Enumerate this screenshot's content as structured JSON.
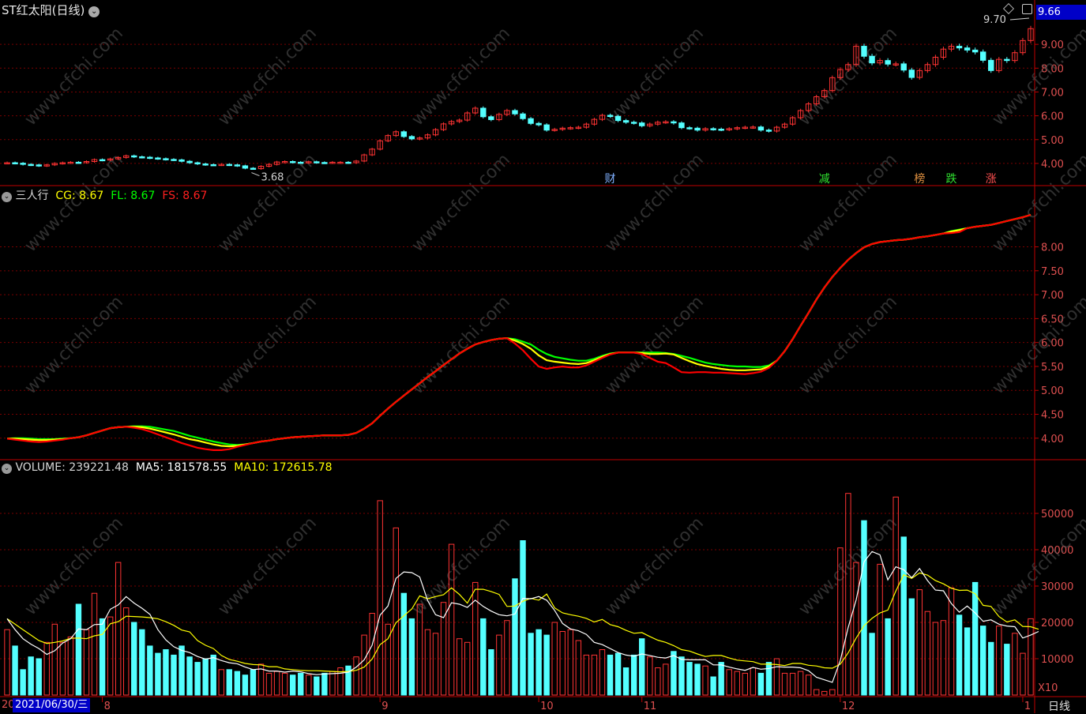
{
  "header": {
    "stock_name": "ST红太阳(日线)",
    "last_price_badge": "9.66",
    "price_annotation_high": "9.70",
    "price_annotation_low": "3.68"
  },
  "indicator_header": {
    "name": "三人行",
    "cg_label": "CG: ",
    "cg_value": "8.67",
    "fl_label": "FL: ",
    "fl_value": "8.67",
    "fs_label": "FS: ",
    "fs_value": "8.67"
  },
  "volume_header": {
    "volume_label": "VOLUME: ",
    "volume_value": "239221.48",
    "ma5_label": "MA5: ",
    "ma5_value": "181578.55",
    "ma10_label": "MA10: ",
    "ma10_value": "172615.78"
  },
  "volume_unit": "X10",
  "period_label": "日线",
  "selected_date": "2021/06/30/三",
  "x_axis_cut": "20",
  "month_labels": [
    "8",
    "9",
    "10",
    "11",
    "12",
    "1"
  ],
  "event_markers": [
    {
      "text": "财",
      "color": "#7fb0ff"
    },
    {
      "text": "减",
      "color": "#30e030"
    },
    {
      "text": "榜",
      "color": "#e09040"
    },
    {
      "text": "跌",
      "color": "#30e030"
    },
    {
      "text": "涨",
      "color": "#ff5050"
    }
  ],
  "watermark": "www.cfchi.com",
  "colors": {
    "up": "#ff3333",
    "down": "#54ffff",
    "grid": "#7a0000",
    "axis_text": "#e05050",
    "cg": "#ffff00",
    "fl": "#00ff00",
    "fs": "#ff0000",
    "ma5": "#ffffff",
    "ma10": "#ffff00",
    "header_text": "#c0c0c0"
  },
  "chart_data": [
    {
      "type": "candlestick",
      "title": "ST红太阳(日线)",
      "y_ticks": [
        "4.00",
        "5.00",
        "6.00",
        "7.00",
        "8.00",
        "9.00"
      ],
      "ylim": [
        3.5,
        10.0
      ],
      "close": [
        4.03,
        4.01,
        3.96,
        3.94,
        3.9,
        3.94,
        4.0,
        4.03,
        4.05,
        4.04,
        4.08,
        4.16,
        4.14,
        4.19,
        4.25,
        4.32,
        4.28,
        4.26,
        4.23,
        4.2,
        4.17,
        4.15,
        4.09,
        4.03,
        3.98,
        3.95,
        3.94,
        3.96,
        3.94,
        3.9,
        3.8,
        3.78,
        3.88,
        3.96,
        4.06,
        4.08,
        4.05,
        4.04,
        4.07,
        4.04,
        4.03,
        4.05,
        4.05,
        4.03,
        4.1,
        4.36,
        4.6,
        4.95,
        5.17,
        5.33,
        5.13,
        5.03,
        5.07,
        5.2,
        5.42,
        5.66,
        5.76,
        5.82,
        6.12,
        6.32,
        5.96,
        5.84,
        6.06,
        6.22,
        6.08,
        5.88,
        5.68,
        5.62,
        5.4,
        5.43,
        5.48,
        5.5,
        5.52,
        5.65,
        5.85,
        6.02,
        5.98,
        5.8,
        5.73,
        5.7,
        5.58,
        5.65,
        5.73,
        5.75,
        5.7,
        5.5,
        5.48,
        5.4,
        5.46,
        5.44,
        5.42,
        5.46,
        5.5,
        5.52,
        5.53,
        5.4,
        5.36,
        5.52,
        5.65,
        5.92,
        6.22,
        6.5,
        6.8,
        7.06,
        7.6,
        7.94,
        8.15,
        8.92,
        8.5,
        8.22,
        8.32,
        8.17,
        8.18,
        7.92,
        7.61,
        7.9,
        8.15,
        8.46,
        8.8,
        8.92,
        8.85,
        8.76,
        8.68,
        8.33,
        7.9,
        8.37,
        8.32,
        8.65,
        9.16,
        9.66
      ],
      "annotations": [
        "9.70",
        "3.68"
      ]
    },
    {
      "type": "line",
      "title": "三人行",
      "y_ticks": [
        "4.00",
        "4.50",
        "5.00",
        "5.50",
        "6.00",
        "6.50",
        "7.00",
        "7.50",
        "8.00"
      ],
      "ylim": [
        3.65,
        8.95
      ],
      "series": [
        {
          "name": "CG",
          "values": [
            3.99,
            3.99,
            3.98,
            3.97,
            3.96,
            3.96,
            3.97,
            3.98,
            4.0,
            4.02,
            4.06,
            4.11,
            4.16,
            4.21,
            4.23,
            4.24,
            4.24,
            4.23,
            4.2,
            4.16,
            4.12,
            4.08,
            4.03,
            3.98,
            3.95,
            3.91,
            3.87,
            3.84,
            3.83,
            3.84,
            3.87,
            3.9,
            3.93,
            3.95,
            3.98,
            4.0,
            4.02,
            4.03,
            4.04,
            4.05,
            4.06,
            4.06,
            4.06,
            4.07,
            4.11,
            4.2,
            4.31,
            4.47,
            4.62,
            4.76,
            4.89,
            5.02,
            5.15,
            5.28,
            5.4,
            5.53,
            5.65,
            5.77,
            5.87,
            5.96,
            6.01,
            6.05,
            6.08,
            6.09,
            6.04,
            5.97,
            5.87,
            5.73,
            5.63,
            5.6,
            5.58,
            5.56,
            5.55,
            5.57,
            5.63,
            5.7,
            5.76,
            5.79,
            5.79,
            5.79,
            5.78,
            5.76,
            5.76,
            5.77,
            5.75,
            5.68,
            5.61,
            5.55,
            5.51,
            5.48,
            5.45,
            5.43,
            5.42,
            5.42,
            5.43,
            5.44,
            5.5,
            5.62,
            5.82,
            6.07,
            6.35,
            6.62,
            6.9,
            7.15,
            7.37,
            7.56,
            7.73,
            7.87,
            7.99,
            8.06,
            8.1,
            8.12,
            8.14,
            8.15,
            8.17,
            8.2,
            8.22,
            8.25,
            8.28,
            8.32,
            8.35,
            8.39,
            8.42,
            8.44,
            8.46,
            8.5,
            8.54,
            8.58,
            8.62,
            8.67
          ]
        },
        {
          "name": "FL",
          "values": [
            3.99,
            4.0,
            4.0,
            3.99,
            3.98,
            3.98,
            3.98,
            3.99,
            4.0,
            4.02,
            4.06,
            4.11,
            4.16,
            4.21,
            4.23,
            4.24,
            4.25,
            4.25,
            4.24,
            4.21,
            4.18,
            4.15,
            4.1,
            4.05,
            4.01,
            3.97,
            3.93,
            3.9,
            3.87,
            3.86,
            3.87,
            3.9,
            3.93,
            3.95,
            3.98,
            4.0,
            4.02,
            4.03,
            4.04,
            4.05,
            4.06,
            4.06,
            4.06,
            4.07,
            4.11,
            4.2,
            4.31,
            4.47,
            4.62,
            4.76,
            4.89,
            5.02,
            5.15,
            5.28,
            5.4,
            5.53,
            5.65,
            5.77,
            5.87,
            5.96,
            6.01,
            6.05,
            6.08,
            6.09,
            6.07,
            6.02,
            5.96,
            5.85,
            5.76,
            5.7,
            5.67,
            5.64,
            5.62,
            5.62,
            5.66,
            5.72,
            5.77,
            5.79,
            5.79,
            5.79,
            5.79,
            5.79,
            5.79,
            5.78,
            5.76,
            5.72,
            5.68,
            5.63,
            5.58,
            5.55,
            5.53,
            5.51,
            5.5,
            5.5,
            5.49,
            5.49,
            5.52,
            5.62,
            5.82,
            6.07,
            6.35,
            6.62,
            6.9,
            7.15,
            7.37,
            7.56,
            7.73,
            7.87,
            7.99,
            8.06,
            8.1,
            8.12,
            8.14,
            8.15,
            8.17,
            8.2,
            8.22,
            8.25,
            8.28,
            8.33,
            8.36,
            8.39,
            8.42,
            8.44,
            8.46,
            8.5,
            8.54,
            8.58,
            8.62,
            8.67
          ]
        },
        {
          "name": "FS",
          "values": [
            3.99,
            3.97,
            3.95,
            3.93,
            3.92,
            3.93,
            3.95,
            3.97,
            4.0,
            4.02,
            4.06,
            4.11,
            4.16,
            4.21,
            4.23,
            4.24,
            4.22,
            4.19,
            4.14,
            4.08,
            4.02,
            3.96,
            3.9,
            3.85,
            3.8,
            3.77,
            3.75,
            3.75,
            3.77,
            3.82,
            3.86,
            3.9,
            3.93,
            3.95,
            3.98,
            4.0,
            4.02,
            4.03,
            4.04,
            4.05,
            4.06,
            4.06,
            4.06,
            4.07,
            4.11,
            4.2,
            4.31,
            4.47,
            4.62,
            4.76,
            4.89,
            5.02,
            5.15,
            5.28,
            5.4,
            5.53,
            5.65,
            5.77,
            5.87,
            5.96,
            6.01,
            6.05,
            6.08,
            6.09,
            5.98,
            5.84,
            5.66,
            5.5,
            5.45,
            5.48,
            5.5,
            5.48,
            5.48,
            5.52,
            5.6,
            5.68,
            5.75,
            5.79,
            5.79,
            5.79,
            5.76,
            5.68,
            5.6,
            5.57,
            5.48,
            5.38,
            5.37,
            5.38,
            5.38,
            5.37,
            5.37,
            5.36,
            5.35,
            5.34,
            5.36,
            5.39,
            5.47,
            5.62,
            5.82,
            6.07,
            6.35,
            6.62,
            6.9,
            7.15,
            7.37,
            7.56,
            7.73,
            7.87,
            7.99,
            8.06,
            8.1,
            8.12,
            8.14,
            8.15,
            8.17,
            8.2,
            8.22,
            8.25,
            8.28,
            8.29,
            8.31,
            8.39,
            8.42,
            8.44,
            8.46,
            8.5,
            8.54,
            8.58,
            8.62,
            8.67
          ]
        }
      ]
    },
    {
      "type": "bar",
      "title": "VOLUME",
      "y_ticks": [
        "10000",
        "20000",
        "30000",
        "40000",
        "50000"
      ],
      "ylim": [
        0,
        60000
      ],
      "volume": [
        18000,
        13500,
        7000,
        10500,
        10000,
        14500,
        19500,
        14500,
        16000,
        25000,
        18000,
        28000,
        21000,
        21500,
        36500,
        24000,
        20000,
        18000,
        13500,
        11500,
        12500,
        11000,
        13500,
        10500,
        9000,
        10000,
        11000,
        7000,
        7000,
        6500,
        5500,
        7000,
        8500,
        6000,
        6500,
        6000,
        5500,
        6000,
        5500,
        5000,
        6000,
        6500,
        7500,
        8000,
        10500,
        16500,
        22500,
        53500,
        19500,
        46000,
        28000,
        21000,
        25000,
        18000,
        17000,
        25500,
        41500,
        15500,
        14500,
        31000,
        21000,
        12500,
        16500,
        20500,
        32000,
        42500,
        17000,
        18000,
        16500,
        20000,
        17500,
        18000,
        15000,
        11000,
        11000,
        12500,
        11000,
        11500,
        7500,
        11000,
        15500,
        10500,
        7500,
        8500,
        12000,
        10500,
        9000,
        8500,
        8000,
        5000,
        9000,
        7000,
        6500,
        6000,
        7500,
        6000,
        9000,
        10000,
        6000,
        6000,
        6500,
        5500,
        1500,
        1000,
        1500,
        40500,
        55500,
        36500,
        48000,
        17000,
        36000,
        21000,
        54500,
        43500,
        26500,
        29000,
        23000,
        20000,
        20500,
        29500,
        22000,
        18500,
        31000,
        19000,
        14500,
        19000,
        14000,
        17000,
        11500,
        21000,
        24000
      ],
      "ma5": [
        21000,
        18000,
        15500,
        14000,
        12800,
        11200,
        12200,
        14300,
        15500,
        18200,
        18000,
        19400,
        19500,
        23600,
        24800,
        27100,
        25300,
        23900,
        22200,
        18000,
        15200,
        13300,
        12300,
        11700,
        10600,
        9900,
        10300,
        9500,
        8900,
        8600,
        7700,
        7000,
        7200,
        6600,
        6600,
        6300,
        6600,
        6400,
        5900,
        5600,
        5800,
        5900,
        6000,
        6300,
        7700,
        9700,
        13700,
        22000,
        24500,
        32100,
        33900,
        33700,
        32500,
        26000,
        22100,
        21300,
        25400,
        25000,
        24100,
        26100,
        24400,
        23100,
        22100,
        21800,
        22300,
        26600,
        26500,
        27100,
        26100,
        23300,
        19700,
        18200,
        17700,
        16700,
        14500,
        13900,
        12800,
        11700,
        11000,
        10700,
        11300,
        10900,
        10400,
        10200,
        10900,
        9800,
        9700,
        9700,
        9700,
        8300,
        8300,
        7700,
        7200,
        6800,
        7600,
        7100,
        7300,
        7800,
        7700,
        7700,
        7500,
        6700,
        4900,
        4200,
        3500,
        9500,
        18600,
        26200,
        36700,
        39500,
        38600,
        31700,
        35300,
        34500,
        32300,
        34800,
        31500,
        28900,
        28700,
        25200,
        22800,
        24500,
        22600,
        20300,
        20700,
        19500,
        19000,
        18800,
        15700,
        16500,
        17500
      ],
      "ma10": [
        21000,
        19500,
        18000,
        16500,
        15000,
        14200,
        14500,
        14900,
        15600,
        15700,
        15500,
        16300,
        16700,
        19600,
        20200,
        21700,
        21600,
        21500,
        21300,
        21000,
        20200,
        19200,
        17900,
        17400,
        15000,
        13700,
        12800,
        10900,
        9800,
        9300,
        8700,
        8400,
        8300,
        7800,
        7800,
        7200,
        7000,
        6800,
        6700,
        6700,
        6600,
        6500,
        6400,
        6500,
        6800,
        7700,
        9900,
        13900,
        15500,
        19900,
        21800,
        23700,
        27300,
        26500,
        27100,
        27600,
        29500,
        27700,
        25300,
        29100,
        29100,
        28500,
        27700,
        24400,
        24500,
        25800,
        26600,
        26100,
        27800,
        24000,
        22600,
        22100,
        21700,
        21100,
        20100,
        20800,
        19400,
        18800,
        17800,
        17000,
        17200,
        16100,
        15100,
        14500,
        13600,
        12500,
        12100,
        11300,
        10600,
        10900,
        10900,
        10200,
        9600,
        9400,
        9200,
        8500,
        8500,
        8400,
        8100,
        8700,
        8700,
        8200,
        8000,
        7500,
        7400,
        8500,
        11600,
        15700,
        19100,
        21100,
        22600,
        23400,
        28600,
        33100,
        32100,
        33600,
        33000,
        31500,
        30600,
        29400,
        28800,
        28900,
        27900,
        24700,
        24400,
        21600,
        20100,
        20700,
        18900,
        18800,
        18100
      ]
    }
  ]
}
